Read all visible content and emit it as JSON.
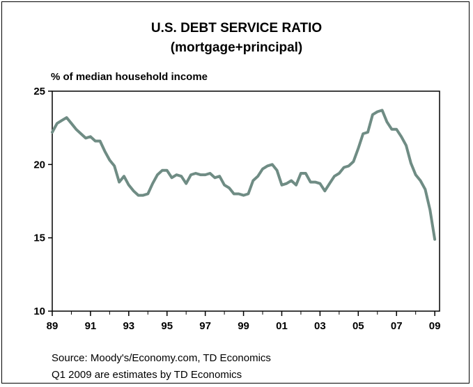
{
  "chart_data": {
    "type": "line",
    "title": "U.S. DEBT SERVICE RATIO",
    "subtitle": "(mortgage+principal)",
    "ylabel": "% of median household income",
    "xlabel": "",
    "ylim": [
      10,
      25
    ],
    "yticks": [
      "10",
      "15",
      "20",
      "25"
    ],
    "xlim": [
      1989.0,
      2009.25
    ],
    "xticks": [
      {
        "label": "89",
        "year": 1989
      },
      {
        "label": "91",
        "year": 1991
      },
      {
        "label": "93",
        "year": 1993
      },
      {
        "label": "95",
        "year": 1995
      },
      {
        "label": "97",
        "year": 1997
      },
      {
        "label": "99",
        "year": 1999
      },
      {
        "label": "01",
        "year": 2001
      },
      {
        "label": "03",
        "year": 2003
      },
      {
        "label": "05",
        "year": 2005
      },
      {
        "label": "07",
        "year": 2007
      },
      {
        "label": "09",
        "year": 2009
      }
    ],
    "grid": false,
    "legend": "none",
    "line_color": "#6f8c84",
    "series": [
      {
        "x": [
          1989.0,
          1989.25,
          1989.5,
          1989.75,
          1990.0,
          1990.25,
          1990.5,
          1990.75,
          1991.0,
          1991.25,
          1991.5,
          1991.75,
          1992.0,
          1992.25,
          1992.5,
          1992.75,
          1993.0,
          1993.25,
          1993.5,
          1993.75,
          1994.0,
          1994.25,
          1994.5,
          1994.75,
          1995.0,
          1995.25,
          1995.5,
          1995.75,
          1996.0,
          1996.25,
          1996.5,
          1996.75,
          1997.0,
          1997.25,
          1997.5,
          1997.75,
          1998.0,
          1998.25,
          1998.5,
          1998.75,
          1999.0,
          1999.25,
          1999.5,
          1999.75,
          2000.0,
          2000.25,
          2000.5,
          2000.75,
          2001.0,
          2001.25,
          2001.5,
          2001.75,
          2002.0,
          2002.25,
          2002.5,
          2002.75,
          2003.0,
          2003.25,
          2003.5,
          2003.75,
          2004.0,
          2004.25,
          2004.5,
          2004.75,
          2005.0,
          2005.25,
          2005.5,
          2005.75,
          2006.0,
          2006.25,
          2006.5,
          2006.75,
          2007.0,
          2007.25,
          2007.5,
          2007.75,
          2008.0,
          2008.25,
          2008.5,
          2008.75,
          2009.0
        ],
        "values": [
          22.2,
          22.8,
          23.0,
          23.2,
          22.8,
          22.4,
          22.1,
          21.8,
          21.9,
          21.6,
          21.6,
          20.9,
          20.3,
          19.9,
          18.8,
          19.2,
          18.6,
          18.2,
          17.9,
          17.9,
          18.0,
          18.7,
          19.3,
          19.6,
          19.6,
          19.1,
          19.3,
          19.2,
          18.7,
          19.3,
          19.4,
          19.3,
          19.3,
          19.4,
          19.1,
          19.2,
          18.6,
          18.4,
          18.0,
          18.0,
          17.9,
          18.0,
          18.9,
          19.2,
          19.7,
          19.9,
          20.0,
          19.6,
          18.6,
          18.7,
          18.9,
          18.6,
          19.4,
          19.4,
          18.8,
          18.8,
          18.7,
          18.2,
          18.7,
          19.2,
          19.4,
          19.8,
          19.9,
          20.2,
          21.1,
          22.1,
          22.2,
          23.4,
          23.6,
          23.7,
          22.9,
          22.4,
          22.4,
          21.9,
          21.3,
          20.1,
          19.3,
          18.9,
          18.3,
          16.9,
          14.9
        ]
      }
    ]
  },
  "source_lines": [
    "Source: Moody's/Economy.com, TD Economics",
    "Q1 2009 are estimates by TD Economics"
  ]
}
